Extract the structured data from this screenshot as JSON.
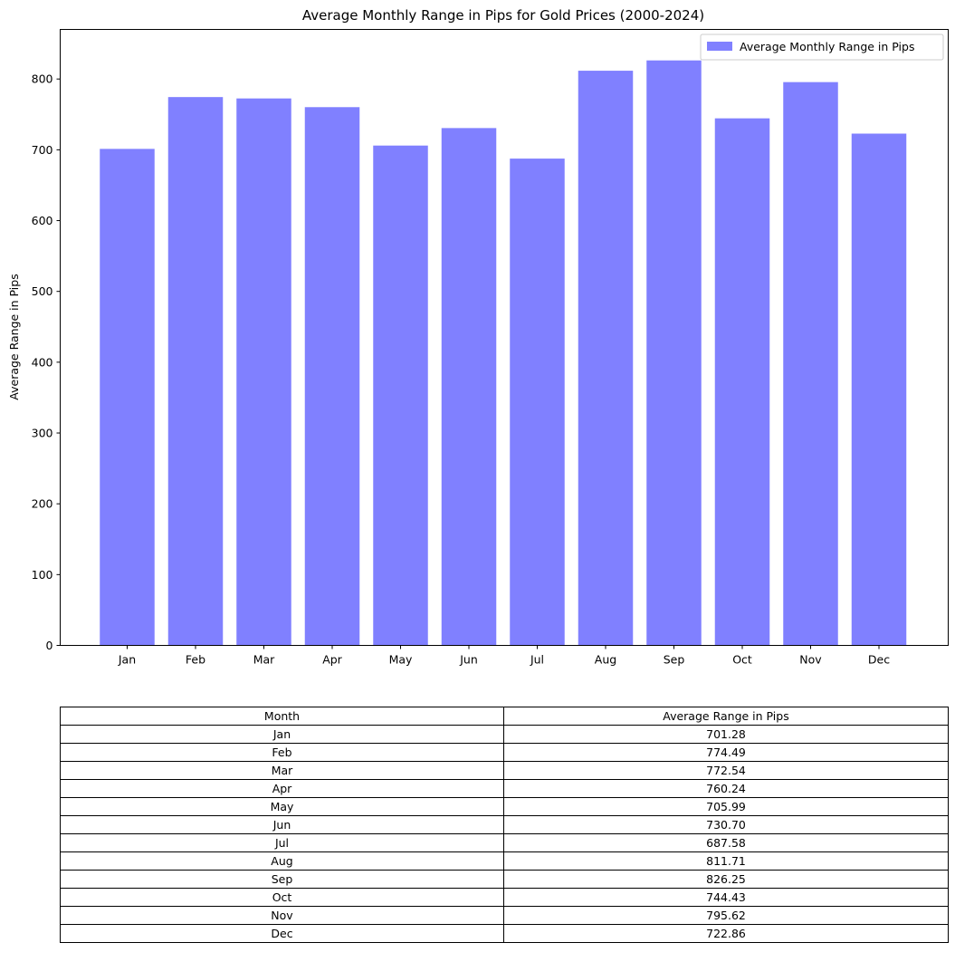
{
  "chart_data": {
    "type": "bar",
    "title": "Average Monthly Range in Pips for Gold Prices (2000-2024)",
    "xlabel": "",
    "ylabel": "Average Range in Pips",
    "ylim": [
      0,
      870
    ],
    "yticks": [
      0,
      100,
      200,
      300,
      400,
      500,
      600,
      700,
      800
    ],
    "categories": [
      "Jan",
      "Feb",
      "Mar",
      "Apr",
      "May",
      "Jun",
      "Jul",
      "Aug",
      "Sep",
      "Oct",
      "Nov",
      "Dec"
    ],
    "series": [
      {
        "name": "Average Monthly Range in Pips",
        "color": "#8080ff",
        "values": [
          701.28,
          774.49,
          772.54,
          760.24,
          705.99,
          730.7,
          687.58,
          811.71,
          826.25,
          744.43,
          795.62,
          722.86
        ]
      }
    ],
    "legend": {
      "position": "top-right"
    },
    "grid": false
  },
  "table": {
    "headers": [
      "Month",
      "Average Range in Pips"
    ],
    "rows": [
      [
        "Jan",
        "701.28"
      ],
      [
        "Feb",
        "774.49"
      ],
      [
        "Mar",
        "772.54"
      ],
      [
        "Apr",
        "760.24"
      ],
      [
        "May",
        "705.99"
      ],
      [
        "Jun",
        "730.70"
      ],
      [
        "Jul",
        "687.58"
      ],
      [
        "Aug",
        "811.71"
      ],
      [
        "Sep",
        "826.25"
      ],
      [
        "Oct",
        "744.43"
      ],
      [
        "Nov",
        "795.62"
      ],
      [
        "Dec",
        "722.86"
      ]
    ]
  }
}
